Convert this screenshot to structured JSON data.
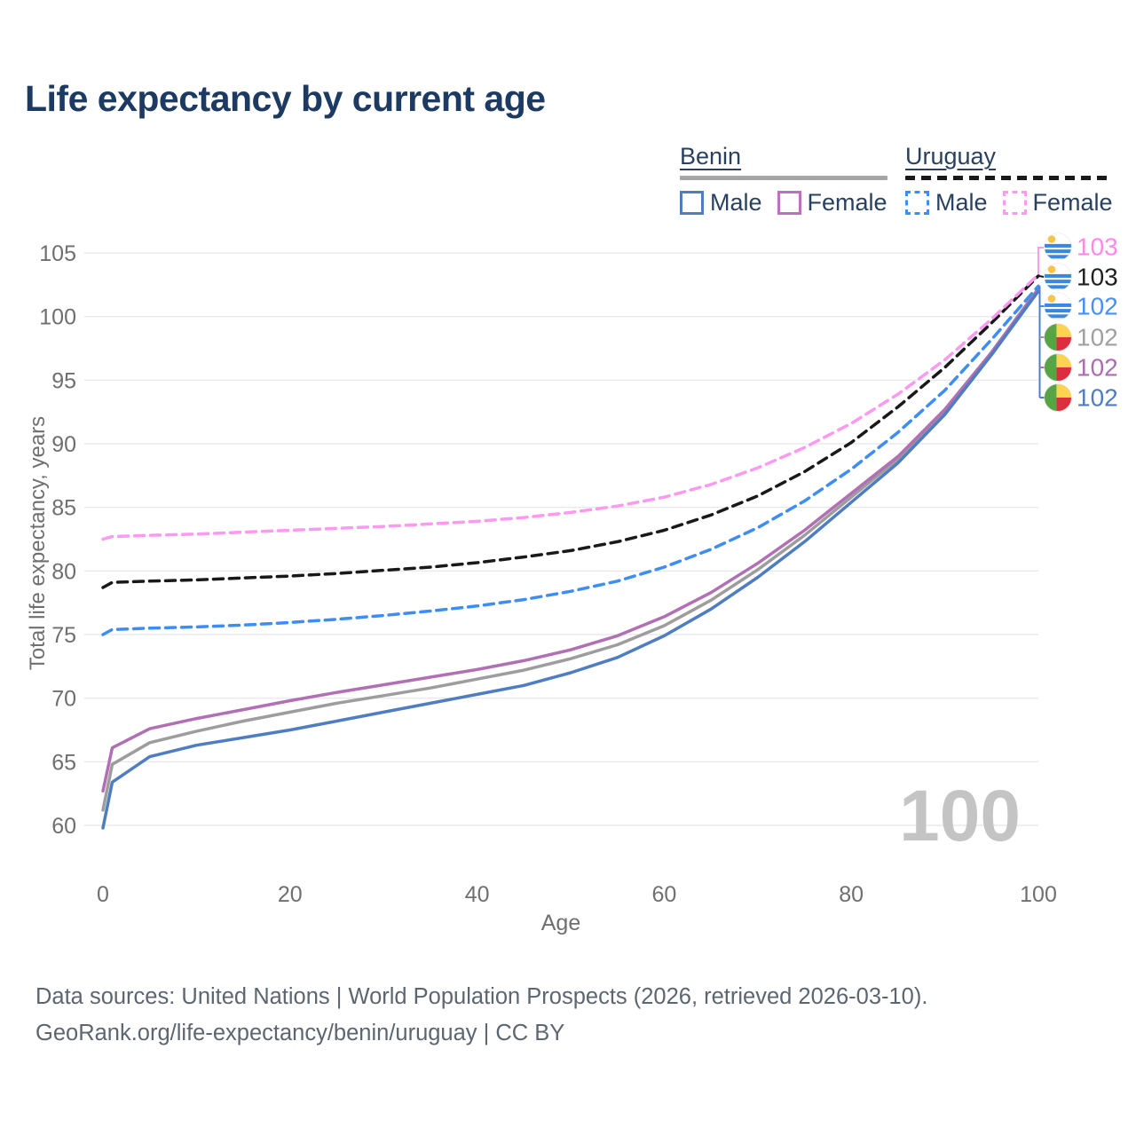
{
  "title": "Life expectancy by current age",
  "watermark": "100",
  "palette": {
    "background": "#ffffff",
    "title_color": "#1d3a63",
    "axis_color": "#6f6f6f",
    "grid_color": "#eaeaea",
    "watermark_color": "#c4c4c4",
    "legend_text_color": "#29415f"
  },
  "legend": {
    "groups": [
      {
        "country": "Benin",
        "line_style": "solid",
        "line_color": "#a6a6a6",
        "items": [
          {
            "label": "Male",
            "color": "#4e7dc1",
            "dashed": false
          },
          {
            "label": "Female",
            "color": "#b873ba",
            "dashed": false
          }
        ]
      },
      {
        "country": "Uruguay",
        "line_style": "dashed",
        "line_color": "#191919",
        "items": [
          {
            "label": "Male",
            "color": "#3d8df5",
            "dashed": true
          },
          {
            "label": "Female",
            "color": "#fb9bf0",
            "dashed": true
          }
        ]
      }
    ]
  },
  "footer": {
    "line1": "Data sources: United Nations | World Population Prospects (2026, retrieved 2026-03-10).",
    "line2": "GeoRank.org/life-expectancy/benin/uruguay | CC BY"
  },
  "chart_data": {
    "type": "line",
    "title": "Life expectancy by current age",
    "xlabel": "Age",
    "ylabel": "Total life expectancy, years",
    "xlim": [
      0,
      100
    ],
    "ylim": [
      60,
      105
    ],
    "xticks": [
      0,
      20,
      40,
      60,
      80,
      100
    ],
    "yticks": [
      60,
      65,
      70,
      75,
      80,
      85,
      90,
      95,
      100,
      105
    ],
    "grid": "horizontal",
    "legend_position": "top-right",
    "x": [
      0,
      1,
      5,
      10,
      15,
      20,
      25,
      30,
      35,
      40,
      45,
      50,
      55,
      60,
      65,
      70,
      75,
      80,
      85,
      90,
      95,
      100
    ],
    "series": [
      {
        "name": "Benin Total",
        "country": "Benin",
        "sex": "All",
        "color": "#9d9d9d",
        "dashed": false,
        "values": [
          61.2,
          64.8,
          66.5,
          67.4,
          68.2,
          68.9,
          69.6,
          70.2,
          70.8,
          71.5,
          72.2,
          73.1,
          74.2,
          75.7,
          77.7,
          80.1,
          82.8,
          85.8,
          88.8,
          92.5,
          97.1,
          102.1
        ]
      },
      {
        "name": "Benin Female",
        "country": "Benin",
        "sex": "Female",
        "color": "#b16fb4",
        "dashed": false,
        "values": [
          62.7,
          66.1,
          67.6,
          68.4,
          69.1,
          69.8,
          70.45,
          71.05,
          71.65,
          72.25,
          72.95,
          73.8,
          74.9,
          76.4,
          78.3,
          80.6,
          83.2,
          86.1,
          89.0,
          92.7,
          97.2,
          102.2
        ]
      },
      {
        "name": "Benin Male",
        "country": "Benin",
        "sex": "Male",
        "color": "#4e7dc1",
        "dashed": false,
        "values": [
          59.8,
          63.4,
          65.4,
          66.3,
          66.9,
          67.5,
          68.2,
          68.9,
          69.6,
          70.3,
          71.0,
          72.0,
          73.2,
          74.9,
          77.0,
          79.5,
          82.3,
          85.4,
          88.5,
          92.3,
          97.0,
          102.0
        ]
      },
      {
        "name": "Uruguay Male",
        "country": "Uruguay",
        "sex": "Male",
        "color": "#3d8df5",
        "dashed": true,
        "values": [
          75.0,
          75.4,
          75.5,
          75.6,
          75.75,
          75.95,
          76.2,
          76.5,
          76.85,
          77.25,
          77.75,
          78.4,
          79.2,
          80.3,
          81.7,
          83.4,
          85.5,
          88.0,
          90.9,
          94.2,
          98.2,
          102.4
        ]
      },
      {
        "name": "Uruguay Total",
        "country": "Uruguay",
        "sex": "All",
        "color": "#191919",
        "dashed": true,
        "values": [
          78.7,
          79.1,
          79.2,
          79.3,
          79.45,
          79.6,
          79.8,
          80.05,
          80.3,
          80.65,
          81.1,
          81.6,
          82.3,
          83.2,
          84.4,
          85.9,
          87.8,
          90.1,
          92.9,
          96.0,
          99.5,
          103.2
        ]
      },
      {
        "name": "Uruguay Female",
        "country": "Uruguay",
        "sex": "Female",
        "color": "#fc99f0",
        "dashed": true,
        "values": [
          82.5,
          82.7,
          82.8,
          82.9,
          83.05,
          83.2,
          83.35,
          83.5,
          83.7,
          83.9,
          84.2,
          84.6,
          85.1,
          85.8,
          86.8,
          88.1,
          89.7,
          91.6,
          93.9,
          96.6,
          99.8,
          103.3
        ]
      }
    ],
    "end_labels": [
      {
        "flag": "uruguay",
        "value": "103",
        "color": "#ff87e8",
        "series": "Uruguay Female"
      },
      {
        "flag": "uruguay",
        "value": "103",
        "color": "#1f1f1f",
        "series": "Uruguay Total"
      },
      {
        "flag": "uruguay",
        "value": "102",
        "color": "#4590f7",
        "series": "Uruguay Male"
      },
      {
        "flag": "benin",
        "value": "102",
        "color": "#a0a0a0",
        "series": "Benin Total"
      },
      {
        "flag": "benin",
        "value": "102",
        "color": "#ad6cb0",
        "series": "Benin Female"
      },
      {
        "flag": "benin",
        "value": "102",
        "color": "#4e7dc1",
        "series": "Benin Male"
      }
    ],
    "flag_colors": {
      "uruguay": {
        "bg": "#ffffff",
        "stripe": "#3a87e2",
        "sun": "#f5c54a"
      },
      "benin": {
        "green": "#57a445",
        "yellow": "#fdd44f",
        "red": "#dc2e3e"
      }
    }
  }
}
